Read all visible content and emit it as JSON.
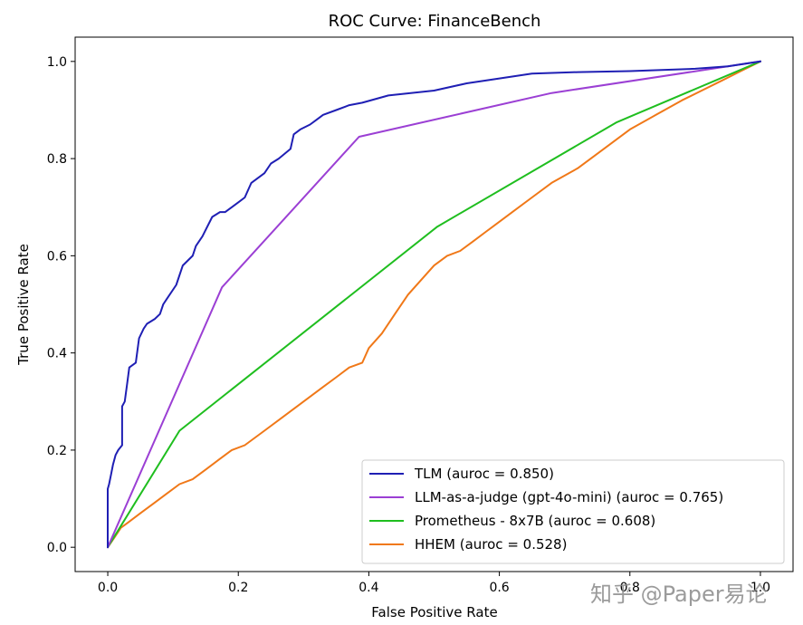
{
  "chart_data": {
    "type": "line",
    "title": "ROC Curve: FinanceBench",
    "xlabel": "False Positive Rate",
    "ylabel": "True Positive Rate",
    "xlim": [
      -0.05,
      1.05
    ],
    "ylim": [
      -0.05,
      1.05
    ],
    "xticks": [
      0.0,
      0.2,
      0.4,
      0.6,
      0.8,
      1.0
    ],
    "yticks": [
      0.0,
      0.2,
      0.4,
      0.6,
      0.8,
      1.0
    ],
    "xtick_labels": [
      "0.0",
      "0.2",
      "0.4",
      "0.6",
      "0.8",
      "1.0"
    ],
    "ytick_labels": [
      "0.0",
      "0.2",
      "0.4",
      "0.6",
      "0.8",
      "1.0"
    ],
    "grid": false,
    "legend_position": "bottom-right",
    "series": [
      {
        "name": "TLM (auroc = 0.850)",
        "color": "#1f1fb4",
        "x": [
          0.0,
          0.0,
          0.002,
          0.005,
          0.008,
          0.012,
          0.016,
          0.022,
          0.022,
          0.026,
          0.03,
          0.033,
          0.043,
          0.048,
          0.055,
          0.06,
          0.072,
          0.08,
          0.085,
          0.09,
          0.105,
          0.115,
          0.13,
          0.135,
          0.145,
          0.16,
          0.172,
          0.18,
          0.2,
          0.21,
          0.22,
          0.24,
          0.25,
          0.262,
          0.28,
          0.285,
          0.295,
          0.31,
          0.32,
          0.33,
          0.35,
          0.37,
          0.39,
          0.43,
          0.5,
          0.55,
          0.6,
          0.65,
          0.72,
          0.8,
          0.9,
          0.95,
          1.0
        ],
        "y": [
          0.0,
          0.12,
          0.13,
          0.15,
          0.17,
          0.19,
          0.2,
          0.21,
          0.29,
          0.3,
          0.34,
          0.37,
          0.38,
          0.43,
          0.45,
          0.46,
          0.47,
          0.48,
          0.5,
          0.51,
          0.54,
          0.58,
          0.6,
          0.62,
          0.64,
          0.68,
          0.69,
          0.69,
          0.71,
          0.72,
          0.75,
          0.77,
          0.79,
          0.8,
          0.82,
          0.85,
          0.86,
          0.87,
          0.88,
          0.89,
          0.9,
          0.91,
          0.915,
          0.93,
          0.94,
          0.955,
          0.965,
          0.975,
          0.978,
          0.98,
          0.985,
          0.99,
          1.0
        ]
      },
      {
        "name": "LLM-as-a-judge (gpt-4o-mini) (auroc = 0.765)",
        "color": "#9b3fd4",
        "x": [
          0.0,
          0.175,
          0.385,
          0.68,
          1.0
        ],
        "y": [
          0.0,
          0.535,
          0.845,
          0.935,
          1.0
        ]
      },
      {
        "name": "Prometheus - 8x7B (auroc = 0.608)",
        "color": "#1fbe1f",
        "x": [
          0.0,
          0.11,
          0.505,
          0.78,
          1.0
        ],
        "y": [
          0.0,
          0.24,
          0.66,
          0.875,
          1.0
        ]
      },
      {
        "name": "HHEM (auroc = 0.528)",
        "color": "#f07818",
        "x": [
          0.0,
          0.01,
          0.02,
          0.03,
          0.05,
          0.07,
          0.09,
          0.11,
          0.13,
          0.15,
          0.17,
          0.19,
          0.21,
          0.24,
          0.27,
          0.3,
          0.33,
          0.35,
          0.37,
          0.39,
          0.4,
          0.42,
          0.44,
          0.46,
          0.48,
          0.5,
          0.52,
          0.54,
          0.56,
          0.58,
          0.6,
          0.62,
          0.65,
          0.68,
          0.72,
          0.76,
          0.8,
          0.84,
          0.88,
          0.91,
          0.94,
          0.97,
          1.0
        ],
        "y": [
          0.0,
          0.02,
          0.04,
          0.05,
          0.07,
          0.09,
          0.11,
          0.13,
          0.14,
          0.16,
          0.18,
          0.2,
          0.21,
          0.24,
          0.27,
          0.3,
          0.33,
          0.35,
          0.37,
          0.38,
          0.41,
          0.44,
          0.48,
          0.52,
          0.55,
          0.58,
          0.6,
          0.61,
          0.63,
          0.65,
          0.67,
          0.69,
          0.72,
          0.75,
          0.78,
          0.82,
          0.86,
          0.89,
          0.92,
          0.94,
          0.96,
          0.98,
          1.0
        ]
      }
    ]
  },
  "watermark": {
    "text": "知乎 @Paper易论"
  }
}
